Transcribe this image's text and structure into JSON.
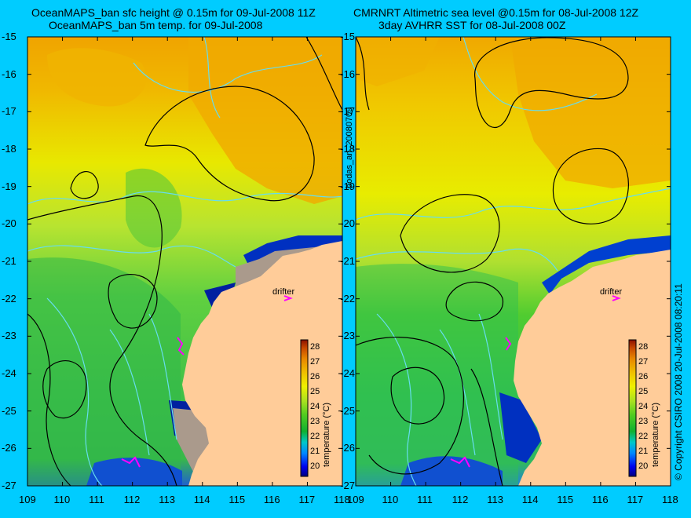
{
  "left_panel": {
    "title_line1": "OceanMAPS_ban sfc height @ 0.15m for 09-Jul-2008 11Z",
    "title_line2": "OceanMAPS_ban 5m temp. for 09-Jul-2008"
  },
  "right_panel": {
    "title_line1": "CMRNRT Altimetric sea level  @0.15m  for 08-Jul-2008 12Z",
    "title_line2": "3day AVHRR SST for 08-Jul-2008 00Z"
  },
  "center_vertical_label": "bodas_an_20080709",
  "copyright_label": "© Copyright CSIRO 2008   20-Jul-2008 08:20:11",
  "lat_ticks": [
    "-15",
    "-16",
    "-17",
    "-18",
    "-19",
    "-20",
    "-21",
    "-22",
    "-23",
    "-24",
    "-25",
    "-26",
    "-27"
  ],
  "lon_ticks": [
    "109",
    "110",
    "111",
    "112",
    "113",
    "114",
    "115",
    "116",
    "117",
    "118"
  ],
  "colorbar": {
    "title": "temperature (°C)",
    "labels": [
      "28",
      "27",
      "26",
      "25",
      "24",
      "23",
      "22",
      "21",
      "20"
    ]
  },
  "drifter_label": "drifter",
  "colors": {
    "background": "#00ccff",
    "land": "#ffcc99",
    "contour": "#000000",
    "bathymetry": "#66ddee",
    "drifter": "#ff00ff"
  },
  "map_data": {
    "lon_range": [
      109,
      118
    ],
    "lat_range": [
      -27,
      -15
    ]
  }
}
